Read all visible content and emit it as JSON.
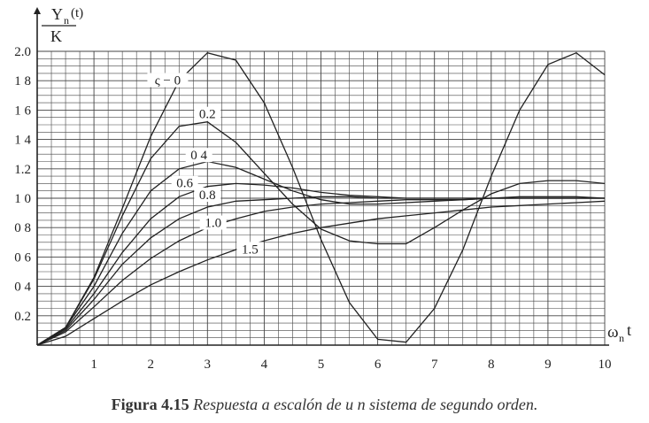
{
  "chart_data": {
    "type": "line",
    "title": "",
    "ylabel": {
      "numerator": "Y",
      "subscript": "n",
      "suffix": "(t)",
      "denominator": "K"
    },
    "xlabel": {
      "main": "ω",
      "subscript": "n",
      "suffix": "t"
    },
    "xlim": [
      0,
      10
    ],
    "ylim": [
      0,
      2.0
    ],
    "xticks": [
      "1",
      "2",
      "3",
      "4",
      "5",
      "6",
      "7",
      "8",
      "9",
      "10"
    ],
    "yticks": [
      "0.2",
      "0 4",
      "0 6",
      "0 8",
      "1 0",
      "1.2",
      "1 4",
      "1 6",
      "1 8",
      "2.0"
    ],
    "grid": true,
    "series": [
      {
        "name": "ς − 0",
        "zeta": 0.0,
        "x": [
          0,
          0.5,
          1,
          1.5,
          2,
          2.5,
          3,
          3.5,
          4,
          4.5,
          5,
          5.5,
          6,
          6.5,
          7,
          7.5,
          8,
          8.5,
          9,
          9.5,
          10
        ],
        "y": [
          0,
          0.12,
          0.46,
          0.93,
          1.42,
          1.8,
          1.99,
          1.94,
          1.65,
          1.21,
          0.72,
          0.29,
          0.04,
          0.02,
          0.25,
          0.65,
          1.15,
          1.6,
          1.91,
          1.99,
          1.84
        ]
      },
      {
        "name": "0.2",
        "zeta": 0.2,
        "x": [
          0,
          0.5,
          1,
          1.5,
          2,
          2.5,
          3,
          3.5,
          4,
          4.5,
          5,
          5.5,
          6,
          6.5,
          7,
          7.5,
          8,
          8.5,
          9,
          9.5,
          10
        ],
        "y": [
          0,
          0.12,
          0.45,
          0.88,
          1.27,
          1.49,
          1.52,
          1.38,
          1.17,
          0.96,
          0.79,
          0.71,
          0.69,
          0.69,
          0.8,
          0.92,
          1.03,
          1.1,
          1.12,
          1.12,
          1.1
        ]
      },
      {
        "name": "0 4",
        "zeta": 0.4,
        "x": [
          0,
          0.5,
          1,
          1.5,
          2,
          2.5,
          3,
          3.5,
          4,
          4.5,
          5,
          5.5,
          6,
          6.5,
          7,
          7.5,
          8,
          8.5,
          9,
          9.5,
          10
        ],
        "y": [
          0,
          0.12,
          0.4,
          0.76,
          1.05,
          1.2,
          1.25,
          1.21,
          1.13,
          1.05,
          0.99,
          0.96,
          0.96,
          0.97,
          0.98,
          0.99,
          1.0,
          1.01,
          1.01,
          1.01,
          1.0
        ]
      },
      {
        "name": "0.6",
        "zeta": 0.6,
        "x": [
          0,
          0.5,
          1,
          1.5,
          2,
          2.5,
          3,
          3.5,
          4,
          4.5,
          5,
          5.5,
          6,
          6.5,
          7,
          7.5,
          8,
          8.5,
          9,
          9.5,
          10
        ],
        "y": [
          0,
          0.11,
          0.35,
          0.63,
          0.86,
          1.01,
          1.08,
          1.1,
          1.09,
          1.07,
          1.04,
          1.02,
          1.01,
          1.0,
          1.0,
          1.0,
          1.0,
          1.0,
          1.0,
          1.0,
          1.0
        ]
      },
      {
        "name": "0.8",
        "zeta": 0.8,
        "x": [
          0,
          0.5,
          1,
          1.5,
          2,
          2.5,
          3,
          3.5,
          4,
          4.5,
          5,
          5.5,
          6,
          6.5,
          7,
          7.5,
          8,
          8.5,
          9,
          9.5,
          10
        ],
        "y": [
          0,
          0.1,
          0.31,
          0.55,
          0.73,
          0.86,
          0.94,
          0.98,
          0.99,
          1.0,
          1.01,
          1.01,
          1.0,
          1.0,
          1.0,
          1.0,
          1.0,
          1.0,
          1.0,
          1.0,
          1.0
        ]
      },
      {
        "name": "1.0",
        "zeta": 1.0,
        "x": [
          0,
          0.5,
          1,
          1.5,
          2,
          2.5,
          3,
          3.5,
          4,
          4.5,
          5,
          5.5,
          6,
          6.5,
          7,
          7.5,
          8,
          8.5,
          9,
          9.5,
          10
        ],
        "y": [
          0,
          0.09,
          0.26,
          0.44,
          0.59,
          0.71,
          0.8,
          0.86,
          0.91,
          0.94,
          0.96,
          0.97,
          0.98,
          0.99,
          0.99,
          0.99,
          1.0,
          1.0,
          1.0,
          1.0,
          1.0
        ]
      },
      {
        "name": "1.5",
        "zeta": 1.5,
        "x": [
          0,
          0.5,
          1,
          1.5,
          2,
          2.5,
          3,
          3.5,
          4,
          4.5,
          5,
          5.5,
          6,
          6.5,
          7,
          7.5,
          8,
          8.5,
          9,
          9.5,
          10
        ],
        "y": [
          0,
          0.06,
          0.18,
          0.3,
          0.41,
          0.5,
          0.58,
          0.65,
          0.71,
          0.76,
          0.8,
          0.83,
          0.86,
          0.88,
          0.9,
          0.92,
          0.94,
          0.95,
          0.96,
          0.97,
          0.98
        ]
      }
    ]
  },
  "caption": {
    "label": "Figura 4.15",
    "text": "Respuesta a escalón de u n sistema de segundo orden."
  }
}
